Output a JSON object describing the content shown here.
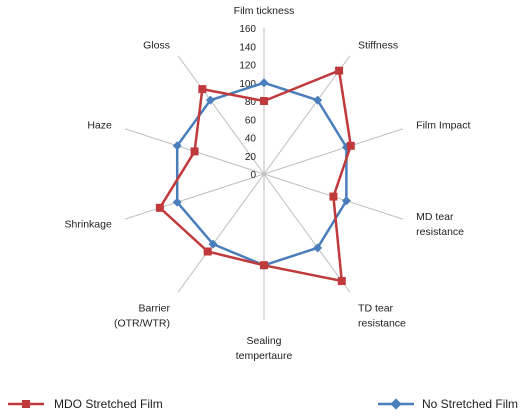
{
  "chart_data": {
    "type": "radar",
    "axes": [
      [
        "Film tickness"
      ],
      [
        "Stiffness"
      ],
      [
        "Film Impact"
      ],
      [
        "MD tear",
        "resistance"
      ],
      [
        "TD tear",
        "resistance"
      ],
      [
        "Sealing",
        "tempertaure"
      ],
      [
        "Barrier",
        "(OTR/WTR)"
      ],
      [
        "Shrinkage"
      ],
      [
        "Haze"
      ],
      [
        "Gloss"
      ]
    ],
    "ticks": [
      "0",
      "20",
      "40",
      "60",
      "80",
      "100",
      "120",
      "140",
      "160"
    ],
    "rlim": [
      0,
      160
    ],
    "series": [
      {
        "name": "MDO Stretched Film",
        "color": "#c0393b",
        "values": [
          80,
          140,
          100,
          80,
          145,
          100,
          105,
          120,
          80,
          115
        ]
      },
      {
        "name": "No Stretched Film",
        "color": "#4a7ebb",
        "values": [
          100,
          100,
          95,
          95,
          100,
          100,
          95,
          100,
          100,
          100
        ]
      }
    ],
    "legend_placement": "bottom"
  }
}
